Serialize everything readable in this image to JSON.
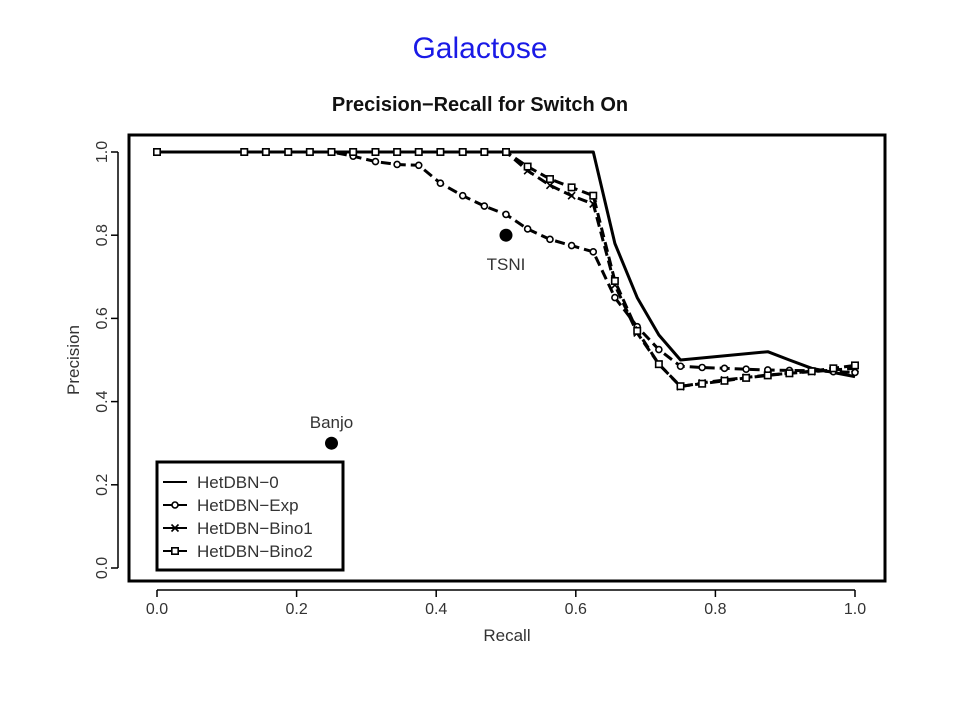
{
  "page_heading": "Galactose",
  "chart_data": {
    "type": "line",
    "title": "Precision−Recall for Switch On",
    "xlabel": "Recall",
    "ylabel": "Precision",
    "xlim": [
      0,
      1
    ],
    "ylim": [
      0,
      1
    ],
    "xticks": [
      "0.0",
      "0.2",
      "0.4",
      "0.6",
      "0.8",
      "1.0"
    ],
    "yticks": [
      "0.0",
      "0.2",
      "0.4",
      "0.6",
      "0.8",
      "1.0"
    ],
    "grid": false,
    "legend_position": "bottom-left",
    "series": [
      {
        "name": "HetDBN−0",
        "marker": "none",
        "x": [
          0.0,
          0.125,
          0.25,
          0.375,
          0.5,
          0.625,
          0.656,
          0.688,
          0.719,
          0.75,
          0.875,
          0.906,
          0.938,
          0.969,
          1.0
        ],
        "y": [
          1.0,
          1.0,
          1.0,
          1.0,
          1.0,
          1.0,
          0.78,
          0.65,
          0.56,
          0.5,
          0.52,
          0.5,
          0.48,
          0.47,
          0.46
        ]
      },
      {
        "name": "HetDBN−Exp",
        "marker": "circle",
        "x": [
          0.0,
          0.125,
          0.156,
          0.188,
          0.219,
          0.25,
          0.281,
          0.313,
          0.344,
          0.375,
          0.406,
          0.438,
          0.469,
          0.5,
          0.531,
          0.563,
          0.594,
          0.625,
          0.656,
          0.688,
          0.719,
          0.75,
          0.781,
          0.813,
          0.844,
          0.875,
          0.906,
          0.938,
          0.969,
          1.0
        ],
        "y": [
          1.0,
          1.0,
          1.0,
          1.0,
          1.0,
          1.0,
          0.99,
          0.977,
          0.97,
          0.968,
          0.925,
          0.895,
          0.87,
          0.85,
          0.815,
          0.79,
          0.775,
          0.76,
          0.65,
          0.58,
          0.525,
          0.485,
          0.482,
          0.48,
          0.478,
          0.476,
          0.475,
          0.474,
          0.472,
          0.47
        ]
      },
      {
        "name": "HetDBN−Bino1",
        "marker": "cross",
        "x": [
          0.0,
          0.125,
          0.156,
          0.188,
          0.219,
          0.25,
          0.281,
          0.313,
          0.344,
          0.375,
          0.406,
          0.438,
          0.469,
          0.5,
          0.531,
          0.563,
          0.594,
          0.625,
          0.656,
          0.688,
          0.719,
          0.75,
          0.781,
          0.813,
          0.844,
          0.875,
          0.906,
          0.938,
          0.969,
          1.0
        ],
        "y": [
          1.0,
          1.0,
          1.0,
          1.0,
          1.0,
          1.0,
          1.0,
          1.0,
          1.0,
          1.0,
          1.0,
          1.0,
          1.0,
          1.0,
          0.955,
          0.92,
          0.895,
          0.875,
          0.68,
          0.565,
          0.49,
          0.436,
          0.445,
          0.452,
          0.458,
          0.464,
          0.468,
          0.472,
          0.476,
          0.48
        ]
      },
      {
        "name": "HetDBN−Bino2",
        "marker": "square",
        "x": [
          0.0,
          0.125,
          0.156,
          0.188,
          0.219,
          0.25,
          0.281,
          0.313,
          0.344,
          0.375,
          0.406,
          0.438,
          0.469,
          0.5,
          0.531,
          0.563,
          0.594,
          0.625,
          0.656,
          0.688,
          0.719,
          0.75,
          0.781,
          0.813,
          0.844,
          0.875,
          0.906,
          0.938,
          0.969,
          1.0
        ],
        "y": [
          1.0,
          1.0,
          1.0,
          1.0,
          1.0,
          1.0,
          1.0,
          1.0,
          1.0,
          1.0,
          1.0,
          1.0,
          1.0,
          1.0,
          0.965,
          0.935,
          0.915,
          0.895,
          0.69,
          0.57,
          0.49,
          0.437,
          0.443,
          0.45,
          0.457,
          0.463,
          0.468,
          0.473,
          0.48,
          0.487
        ]
      }
    ],
    "points": [
      {
        "label": "TSNI",
        "x": 0.5,
        "y": 0.8,
        "label_position": "below"
      },
      {
        "label": "Banjo",
        "x": 0.25,
        "y": 0.3,
        "label_position": "above"
      }
    ]
  }
}
